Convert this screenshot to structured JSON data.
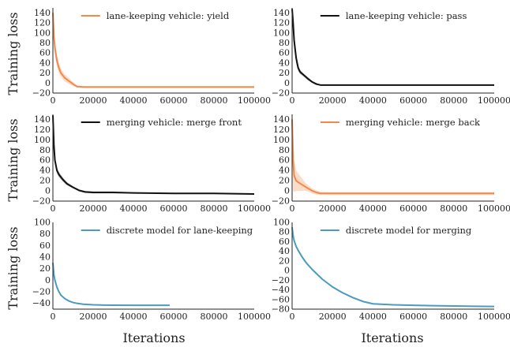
{
  "figure": {
    "ylabel": "Training loss",
    "xlabel": "Iterations"
  },
  "chart_data": [
    {
      "type": "line",
      "legend": "lane-keeping vehicle: yield",
      "legend_position": "top-center",
      "color": "#f08a4b",
      "band": true,
      "xlim": [
        0,
        100000
      ],
      "ylim": [
        -20,
        150
      ],
      "xticks": [
        0,
        20000,
        40000,
        60000,
        80000,
        100000
      ],
      "yticks": [
        -20,
        0,
        20,
        40,
        60,
        80,
        100,
        120,
        140
      ],
      "x": [
        0,
        500,
        1000,
        2000,
        3000,
        4000,
        6000,
        8000,
        10000,
        12000,
        15000,
        20000,
        40000,
        60000,
        80000,
        100000
      ],
      "y": [
        140,
        95,
        70,
        45,
        30,
        20,
        10,
        4,
        -2,
        -7,
        -8,
        -8,
        -8,
        -8,
        -8,
        -8
      ],
      "band_halfwidth": [
        10,
        14,
        14,
        12,
        10,
        8,
        7,
        6,
        4,
        2,
        2,
        2,
        2,
        2,
        2,
        2
      ]
    },
    {
      "type": "line",
      "legend": "lane-keeping vehicle: pass",
      "legend_position": "top-center",
      "color": "#111111",
      "band": true,
      "xlim": [
        0,
        100000
      ],
      "ylim": [
        -20,
        150
      ],
      "xticks": [
        0,
        20000,
        40000,
        60000,
        80000,
        100000
      ],
      "yticks": [
        -20,
        0,
        20,
        40,
        60,
        80,
        100,
        120,
        140
      ],
      "x": [
        0,
        500,
        1000,
        2000,
        3000,
        4000,
        6000,
        8000,
        10000,
        12000,
        14000,
        20000,
        40000,
        60000,
        80000,
        100000
      ],
      "y": [
        148,
        120,
        85,
        50,
        30,
        22,
        15,
        8,
        2,
        -2,
        -4,
        -4,
        -4,
        -4,
        -4,
        -4
      ],
      "band_halfwidth": [
        4,
        14,
        14,
        10,
        6,
        4,
        3,
        3,
        2,
        2,
        1,
        1,
        1,
        1,
        1,
        1
      ]
    },
    {
      "type": "line",
      "legend": "merging vehicle: merge front",
      "legend_position": "top-center",
      "color": "#111111",
      "band": true,
      "xlim": [
        0,
        100000
      ],
      "ylim": [
        -20,
        150
      ],
      "xticks": [
        0,
        20000,
        40000,
        60000,
        80000,
        100000
      ],
      "yticks": [
        -20,
        0,
        20,
        40,
        60,
        80,
        100,
        120,
        140
      ],
      "x": [
        0,
        500,
        1000,
        2000,
        3000,
        5000,
        7000,
        10000,
        13000,
        16000,
        20000,
        30000,
        40000,
        60000,
        80000,
        100000
      ],
      "y": [
        148,
        90,
        60,
        40,
        32,
        22,
        14,
        7,
        1,
        -2,
        -3,
        -3,
        -4,
        -5,
        -5,
        -6
      ],
      "band_halfwidth": [
        4,
        10,
        8,
        6,
        5,
        4,
        3,
        2,
        2,
        2,
        2,
        2,
        1,
        1,
        1,
        1
      ]
    },
    {
      "type": "line",
      "legend": "merging vehicle: merge back",
      "legend_position": "top-center",
      "color": "#f08a4b",
      "band": true,
      "xlim": [
        0,
        100000
      ],
      "ylim": [
        -20,
        150
      ],
      "xticks": [
        0,
        20000,
        40000,
        60000,
        80000,
        100000
      ],
      "yticks": [
        -20,
        0,
        20,
        40,
        60,
        80,
        100,
        120,
        140
      ],
      "x": [
        0,
        500,
        1000,
        2000,
        3000,
        5000,
        7000,
        10000,
        12000,
        14000,
        20000,
        40000,
        60000,
        80000,
        100000
      ],
      "y": [
        140,
        60,
        30,
        20,
        17,
        12,
        7,
        0,
        -3,
        -5,
        -5,
        -5,
        -5,
        -5,
        -5
      ],
      "band_halfwidth": [
        10,
        60,
        32,
        20,
        17,
        12,
        7,
        5,
        4,
        3,
        3,
        3,
        3,
        3,
        3
      ]
    },
    {
      "type": "line",
      "legend": "discrete model for lane-keeping",
      "legend_position": "top-center",
      "color": "#4a9bbf",
      "band": false,
      "xlim": [
        0,
        100000
      ],
      "ylim": [
        -50,
        100
      ],
      "xticks": [
        0,
        20000,
        40000,
        60000,
        80000,
        100000
      ],
      "yticks": [
        -40,
        -20,
        0,
        20,
        40,
        60,
        80,
        100
      ],
      "x": [
        0,
        500,
        1000,
        2000,
        3000,
        4000,
        6000,
        8000,
        10000,
        12000,
        15000,
        20000,
        25000,
        30000,
        40000,
        50000,
        58000
      ],
      "y": [
        30,
        10,
        0,
        -12,
        -20,
        -26,
        -32,
        -36,
        -38.5,
        -40,
        -41.5,
        -42.5,
        -43,
        -43.2,
        -43.3,
        -43.3,
        -43.3
      ]
    },
    {
      "type": "line",
      "legend": "discrete model for merging",
      "legend_position": "top-center",
      "color": "#4a9bbf",
      "band": false,
      "xlim": [
        0,
        100000
      ],
      "ylim": [
        -80,
        100
      ],
      "xticks": [
        0,
        20000,
        40000,
        60000,
        80000,
        100000
      ],
      "yticks": [
        -80,
        -60,
        -40,
        -20,
        0,
        20,
        40,
        60,
        80,
        100
      ],
      "x": [
        0,
        500,
        1000,
        2000,
        3000,
        5000,
        7000,
        10000,
        15000,
        20000,
        25000,
        30000,
        35000,
        40000,
        50000,
        60000,
        70000,
        80000,
        90000,
        100000
      ],
      "y": [
        90,
        72,
        62,
        50,
        42,
        28,
        16,
        2,
        -18,
        -34,
        -46,
        -56,
        -64,
        -69,
        -71,
        -72,
        -72.8,
        -73.5,
        -74,
        -74.5
      ]
    }
  ]
}
